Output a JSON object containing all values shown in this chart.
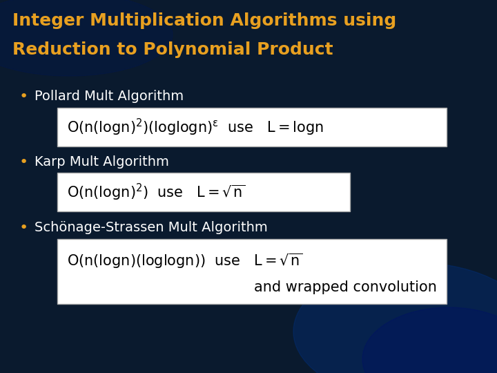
{
  "title_line1": "Integer Multiplication Algorithms using",
  "title_line2": "Reduction to Polynomial Product",
  "title_color": "#E8A020",
  "title_fontsize": 18,
  "background_color": "#0a1a2e",
  "bullet_color": "#ffffff",
  "bullet_fontsize": 14,
  "bullet_dot_color": "#E8A020",
  "bullet1": "Pollard Mult Algorithm",
  "bullet2": "Karp Mult Algorithm",
  "bullet3": "Schönage-Strassen Mult Algorithm",
  "formula_bg": "#ffffff",
  "formula_color": "#000000",
  "formula_fontsize": 13
}
